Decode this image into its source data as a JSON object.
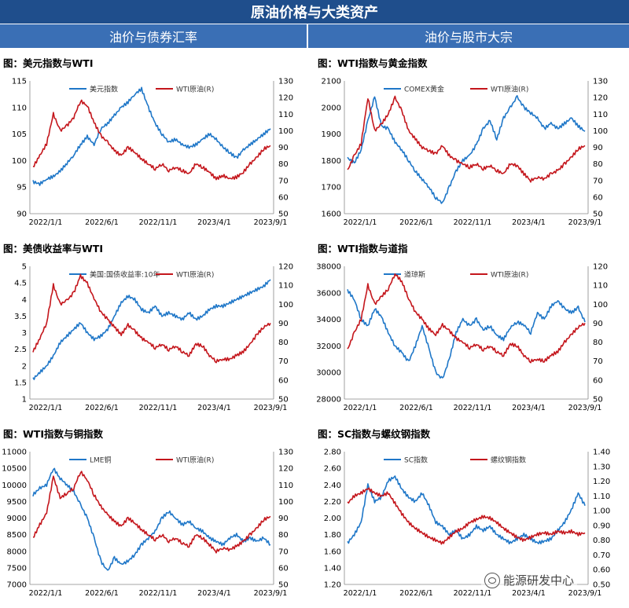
{
  "header": {
    "title": "原油价格与大类资产",
    "left_section": "油价与债券汇率",
    "right_section": "油价与股市大宗"
  },
  "watermark": "能源研发中心",
  "colors": {
    "blue": "#1f77c8",
    "red": "#c4161c",
    "banner": "#1f4e8c",
    "subhead": "#3a6fb5"
  },
  "chart_data": [
    {
      "type": "line",
      "title": "图：美元指数与WTI",
      "x_labels": [
        "2022/1/1",
        "2022/6/1",
        "2022/11/1",
        "2023/4/1",
        "2023/9/1"
      ],
      "left_axis": {
        "ylim": [
          90,
          115
        ],
        "ticks": [
          "90",
          "95",
          "100",
          "105",
          "110",
          "115"
        ]
      },
      "right_axis": {
        "ylim": [
          50,
          130
        ],
        "ticks": [
          "50",
          "60",
          "70",
          "80",
          "90",
          "100",
          "110",
          "120",
          "130"
        ]
      },
      "series": [
        {
          "name": "美元指数",
          "axis": "left",
          "color": "blue",
          "values": [
            96,
            95.6,
            96.5,
            97,
            98,
            99.5,
            101,
            103,
            104.5,
            103,
            106,
            107,
            108.5,
            110,
            111,
            112.5,
            113.5,
            110,
            107,
            105,
            103.5,
            104,
            103,
            102.5,
            103,
            104,
            105,
            104,
            102.5,
            101.5,
            100.5,
            102,
            103,
            104,
            105,
            106
          ]
        },
        {
          "name": "WTI原油(R)",
          "axis": "right",
          "color": "red",
          "values": [
            78,
            85,
            92,
            110,
            100,
            103,
            108,
            118,
            115,
            105,
            97,
            93,
            88,
            85,
            90,
            87,
            83,
            80,
            77,
            80,
            76,
            78,
            76,
            74,
            80,
            78,
            75,
            71,
            73,
            71,
            72,
            75,
            80,
            84,
            89,
            91
          ]
        }
      ]
    },
    {
      "type": "line",
      "title": "图：WTI指数与黄金指数",
      "x_labels": [
        "2022/1/1",
        "2022/6/1",
        "2022/11/1",
        "2023/4/1",
        "2023/9/1"
      ],
      "left_axis": {
        "ylim": [
          1600,
          2100
        ],
        "ticks": [
          "1600",
          "1700",
          "1800",
          "1900",
          "2000",
          "2100"
        ]
      },
      "right_axis": {
        "ylim": [
          50,
          130
        ],
        "ticks": [
          "50",
          "60",
          "70",
          "80",
          "90",
          "100",
          "110",
          "120",
          "130"
        ]
      },
      "series": [
        {
          "name": "COMEX黄金",
          "axis": "left",
          "color": "blue",
          "values": [
            1810,
            1790,
            1840,
            1950,
            2040,
            1930,
            1920,
            1870,
            1840,
            1800,
            1760,
            1730,
            1700,
            1660,
            1640,
            1700,
            1760,
            1800,
            1820,
            1860,
            1920,
            1950,
            1880,
            1960,
            2000,
            2040,
            2000,
            1980,
            1960,
            1920,
            1940,
            1920,
            1940,
            1960,
            1930,
            1910
          ]
        },
        {
          "name": "WTI原油(R)",
          "axis": "right",
          "color": "red",
          "values": [
            76,
            85,
            92,
            120,
            100,
            104,
            110,
            120,
            112,
            100,
            95,
            90,
            88,
            86,
            91,
            85,
            82,
            80,
            78,
            80,
            77,
            79,
            76,
            74,
            80,
            79,
            74,
            70,
            72,
            71,
            74,
            76,
            80,
            84,
            89,
            91
          ]
        }
      ]
    },
    {
      "type": "line",
      "title": "图：美债收益率与WTI",
      "x_labels": [
        "2022/1/1",
        "2022/6/1",
        "2022/11/1",
        "2023/4/1",
        "2023/9/1"
      ],
      "left_axis": {
        "ylim": [
          1,
          5
        ],
        "ticks": [
          "1",
          "1.5",
          "2",
          "2.5",
          "3",
          "3.5",
          "4",
          "4.5",
          "5"
        ]
      },
      "right_axis": {
        "ylim": [
          50,
          120
        ],
        "ticks": [
          "50",
          "60",
          "70",
          "80",
          "90",
          "100",
          "110",
          "120"
        ]
      },
      "series": [
        {
          "name": "美国:国债收益率:10年",
          "axis": "left",
          "color": "blue",
          "values": [
            1.6,
            1.8,
            2.0,
            2.3,
            2.7,
            2.9,
            3.1,
            3.3,
            3.0,
            2.8,
            2.9,
            3.1,
            3.5,
            3.9,
            4.1,
            4.0,
            3.7,
            3.6,
            3.8,
            3.5,
            3.6,
            3.5,
            3.4,
            3.6,
            3.4,
            3.5,
            3.7,
            3.8,
            3.8,
            3.9,
            4.0,
            4.1,
            4.2,
            4.3,
            4.4,
            4.6
          ]
        },
        {
          "name": "WTI原油(R)",
          "axis": "right",
          "color": "red",
          "values": [
            75,
            82,
            90,
            110,
            100,
            102,
            106,
            115,
            111,
            103,
            96,
            92,
            88,
            84,
            89,
            86,
            82,
            80,
            77,
            79,
            76,
            78,
            75,
            73,
            79,
            78,
            73,
            70,
            71,
            71,
            73,
            75,
            79,
            84,
            88,
            90
          ]
        }
      ]
    },
    {
      "type": "line",
      "title": "图：WTI指数与道指",
      "x_labels": [
        "2022/1/1",
        "2022/6/1",
        "2022/11/1",
        "2023/4/1",
        "2023/9/1"
      ],
      "left_axis": {
        "ylim": [
          28000,
          38000
        ],
        "ticks": [
          "28000",
          "30000",
          "32000",
          "34000",
          "36000",
          "38000"
        ]
      },
      "right_axis": {
        "ylim": [
          50,
          120
        ],
        "ticks": [
          "50",
          "60",
          "70",
          "80",
          "90",
          "100",
          "110",
          "120"
        ]
      },
      "series": [
        {
          "name": "道琼斯",
          "axis": "left",
          "color": "blue",
          "values": [
            36200,
            35500,
            34000,
            33500,
            34800,
            34200,
            33000,
            32000,
            31500,
            30800,
            32000,
            33500,
            31800,
            30000,
            29500,
            31000,
            33000,
            34000,
            33500,
            34000,
            33200,
            33500,
            32800,
            32500,
            33400,
            33800,
            33600,
            33000,
            34500,
            34000,
            35000,
            35400,
            34800,
            34500,
            34900,
            33800
          ]
        },
        {
          "name": "WTI原油(R)",
          "axis": "right",
          "color": "red",
          "values": [
            76,
            85,
            92,
            110,
            100,
            104,
            108,
            116,
            112,
            103,
            96,
            92,
            87,
            84,
            89,
            86,
            82,
            80,
            77,
            79,
            76,
            78,
            75,
            73,
            79,
            78,
            73,
            70,
            71,
            70,
            73,
            75,
            80,
            84,
            88,
            90
          ]
        }
      ]
    },
    {
      "type": "line",
      "title": "图：WTI指数与铜指数",
      "x_labels": [
        "2022/1/1",
        "2022/6/1",
        "2022/11/1",
        "2023/4/1",
        "2023/9/1"
      ],
      "left_axis": {
        "ylim": [
          7000,
          11000
        ],
        "ticks": [
          "7000",
          "7500",
          "8000",
          "8500",
          "9000",
          "9500",
          "10000",
          "10500",
          "11000"
        ]
      },
      "right_axis": {
        "ylim": [
          50,
          130
        ],
        "ticks": [
          "50",
          "60",
          "70",
          "80",
          "90",
          "100",
          "110",
          "120",
          "130"
        ]
      },
      "series": [
        {
          "name": "LME铜",
          "axis": "left",
          "color": "blue",
          "values": [
            9700,
            9900,
            10000,
            10500,
            10200,
            10000,
            9800,
            9400,
            9000,
            8400,
            7700,
            7400,
            7800,
            7600,
            7700,
            7900,
            8200,
            8400,
            8600,
            9000,
            9200,
            9000,
            8800,
            8900,
            8700,
            8600,
            8400,
            8300,
            8200,
            8400,
            8500,
            8300,
            8400,
            8300,
            8400,
            8200
          ]
        },
        {
          "name": "WTI原油(R)",
          "axis": "right",
          "color": "red",
          "values": [
            78,
            86,
            93,
            115,
            102,
            105,
            108,
            118,
            113,
            104,
            97,
            92,
            88,
            85,
            90,
            87,
            83,
            80,
            77,
            80,
            76,
            78,
            75,
            73,
            80,
            78,
            74,
            70,
            72,
            71,
            73,
            76,
            80,
            84,
            89,
            91
          ]
        }
      ]
    },
    {
      "type": "line",
      "title": "图：SC指数与螺纹钢指数",
      "x_labels": [
        "2022/1/1",
        "2022/6/1",
        "2022/11/1",
        "2023/4/1",
        "2023/9/1"
      ],
      "left_axis": {
        "ylim": [
          1.2,
          2.8
        ],
        "ticks": [
          "1.20",
          "1.40",
          "1.60",
          "1.80",
          "2.00",
          "2.20",
          "2.40",
          "2.60",
          "2.80"
        ]
      },
      "right_axis": {
        "ylim": [
          0.5,
          1.4
        ],
        "ticks": [
          "0.50",
          "0.60",
          "0.70",
          "0.80",
          "0.90",
          "1.00",
          "1.10",
          "1.20",
          "1.30",
          "1.40"
        ]
      },
      "series": [
        {
          "name": "SC指数",
          "axis": "left",
          "color": "blue",
          "values": [
            1.7,
            1.8,
            1.95,
            2.4,
            2.2,
            2.25,
            2.45,
            2.5,
            2.35,
            2.25,
            2.2,
            2.3,
            2.15,
            1.95,
            1.9,
            1.8,
            1.85,
            1.75,
            1.8,
            1.9,
            1.85,
            1.9,
            1.8,
            1.75,
            1.7,
            1.75,
            1.8,
            1.75,
            1.7,
            1.72,
            1.75,
            1.85,
            1.95,
            2.1,
            2.3,
            2.15
          ]
        },
        {
          "name": "螺纹钢指数",
          "axis": "right",
          "color": "red",
          "values": [
            1.05,
            1.1,
            1.12,
            1.15,
            1.12,
            1.1,
            1.12,
            1.05,
            0.98,
            0.92,
            0.88,
            0.85,
            0.82,
            0.8,
            0.78,
            0.82,
            0.86,
            0.88,
            0.92,
            0.94,
            0.96,
            0.95,
            0.92,
            0.88,
            0.85,
            0.82,
            0.8,
            0.82,
            0.84,
            0.85,
            0.84,
            0.86,
            0.85,
            0.86,
            0.84,
            0.85
          ]
        }
      ]
    }
  ]
}
